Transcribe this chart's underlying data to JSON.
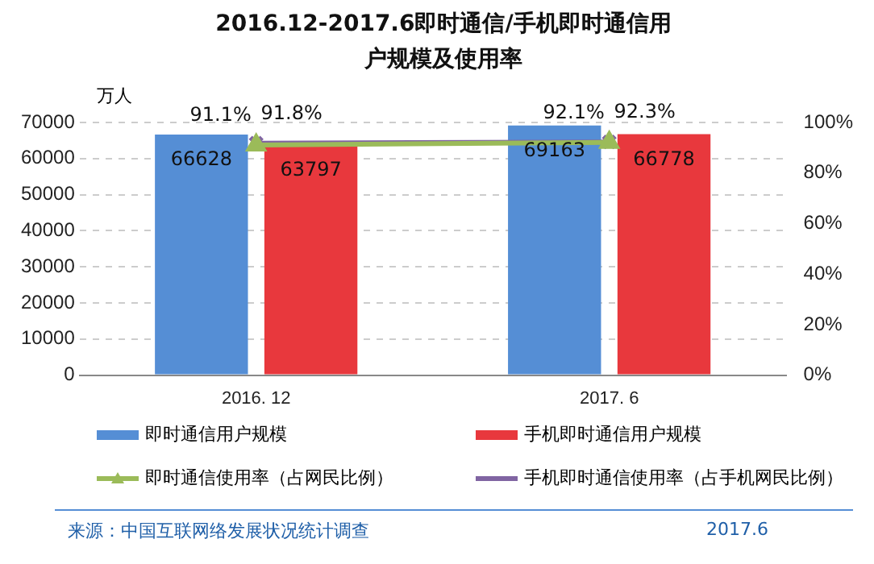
{
  "chart_data": {
    "type": "bar",
    "title": "2016.12-2017.6即时通信/手机即时通信用户规模及使用率",
    "categories": [
      "2016. 12",
      "2017. 6"
    ],
    "ylabel": "万人",
    "series": [
      {
        "name": "即时通信用户规模",
        "color": "#558ed5",
        "values": [
          66628,
          69163
        ]
      },
      {
        "name": "手机即时通信用户规模",
        "color": "#e8383d",
        "values": [
          63797,
          66778
        ]
      },
      {
        "name": "即时通信使用率（占网民比例）",
        "type": "line",
        "axis": "y2",
        "color": "#9bbb59",
        "marker": "triangle",
        "values": [
          91.1,
          92.1
        ],
        "value_labels": [
          "91.1%",
          "92.1%"
        ]
      },
      {
        "name": "手机即时通信使用率（占手机网民比例）",
        "type": "line",
        "axis": "y2",
        "color": "#8064a2",
        "marker": "cross",
        "values": [
          91.8,
          92.3
        ],
        "value_labels": [
          "91.8%",
          "92.3%"
        ]
      }
    ],
    "ylim": [
      0,
      70000
    ],
    "yticks": [
      0,
      10000,
      20000,
      30000,
      40000,
      50000,
      60000,
      70000
    ],
    "y2lim": [
      0,
      100
    ],
    "y2ticks": [
      {
        "value": 0,
        "label": "0%"
      },
      {
        "value": 20,
        "label": "20%"
      },
      {
        "value": 40,
        "label": "40%"
      },
      {
        "value": 60,
        "label": "60%"
      },
      {
        "value": 80,
        "label": "80%"
      },
      {
        "value": 100,
        "label": "100%"
      }
    ],
    "grid": "y",
    "legend": "bottom",
    "data_labels": true,
    "annotations": [
      "来源：中国互联网络发展状况统计调查",
      "2017.6"
    ]
  }
}
